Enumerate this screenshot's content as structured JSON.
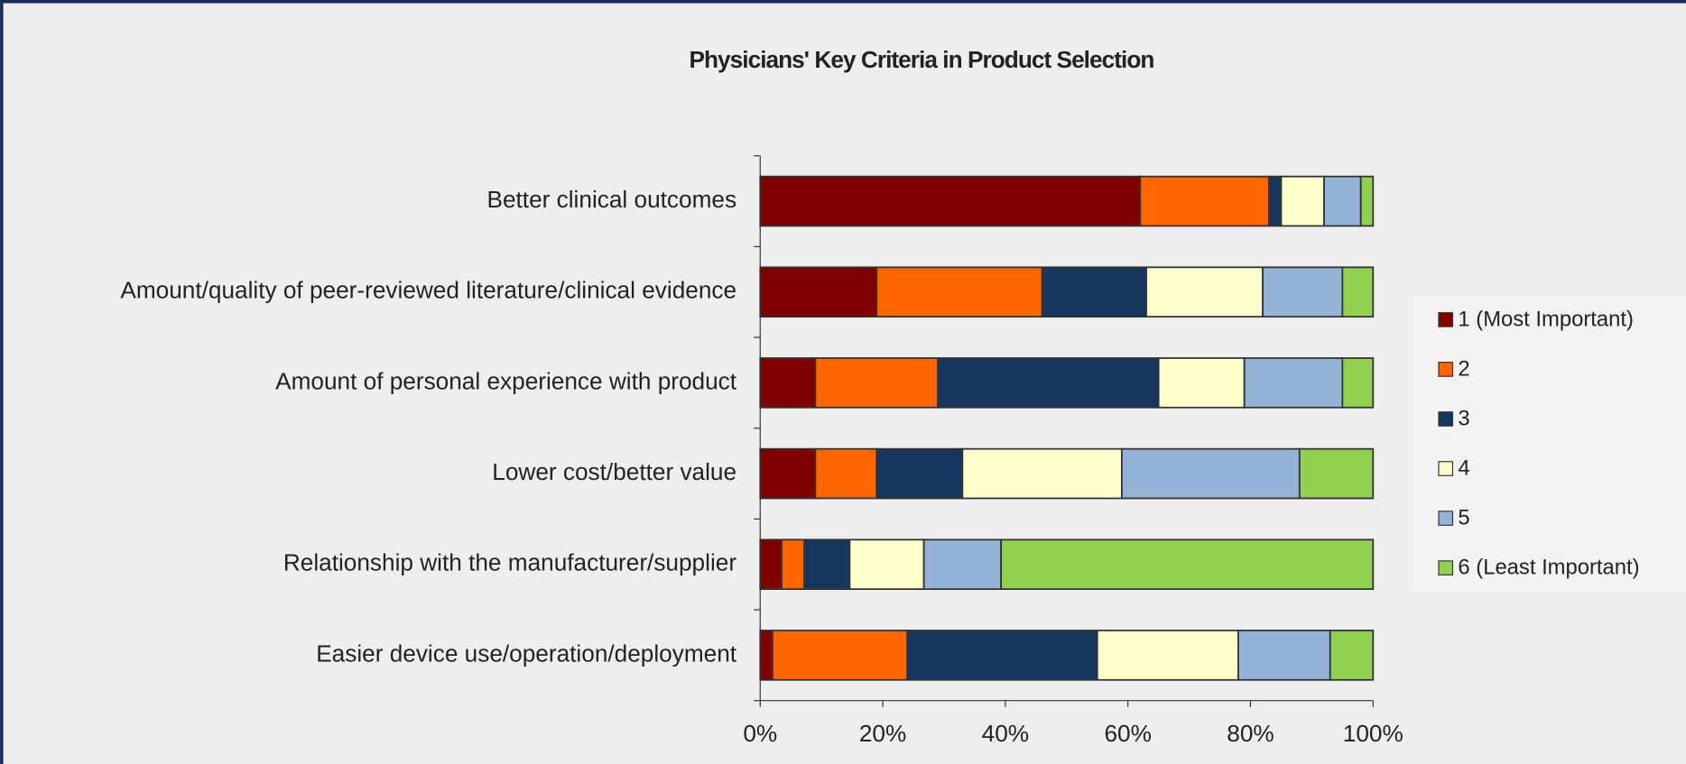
{
  "chart_data": {
    "type": "bar",
    "orientation": "horizontal",
    "stacked": true,
    "title": "Physicians' Key Criteria in Product Selection",
    "categories": [
      "Better clinical outcomes",
      "Amount/quality of peer-reviewed literature/clinical evidence",
      "Amount of personal experience with product",
      "Lower cost/better value",
      "Relationship with the manufacturer/supplier",
      "Easier device use/operation/deployment"
    ],
    "series": [
      {
        "name": "1 (Most Important)",
        "color": "#800000",
        "values": [
          62,
          19,
          9,
          9,
          3.5,
          2
        ]
      },
      {
        "name": "2",
        "color": "#ff6600",
        "values": [
          21,
          27,
          20,
          10,
          3.7,
          22
        ]
      },
      {
        "name": "3",
        "color": "#17365d",
        "values": [
          2,
          17,
          36,
          14,
          7.4,
          31
        ]
      },
      {
        "name": "4",
        "color": "#ffffcc",
        "values": [
          7,
          19,
          14,
          26,
          12.1,
          23
        ]
      },
      {
        "name": "5",
        "color": "#95b3d7",
        "values": [
          6,
          13,
          16,
          29,
          12.6,
          15
        ]
      },
      {
        "name": "6 (Least Important)",
        "color": "#92d050",
        "values": [
          2,
          5,
          5,
          12,
          60.7,
          7
        ]
      }
    ],
    "xlim": [
      0,
      100
    ],
    "xticks": [
      {
        "value": 0,
        "label": "0%"
      },
      {
        "value": 20,
        "label": "20%"
      },
      {
        "value": 40,
        "label": "40%"
      },
      {
        "value": 60,
        "label": "60%"
      },
      {
        "value": 80,
        "label": "80%"
      },
      {
        "value": 100,
        "label": "100%"
      }
    ],
    "legend": "right"
  }
}
